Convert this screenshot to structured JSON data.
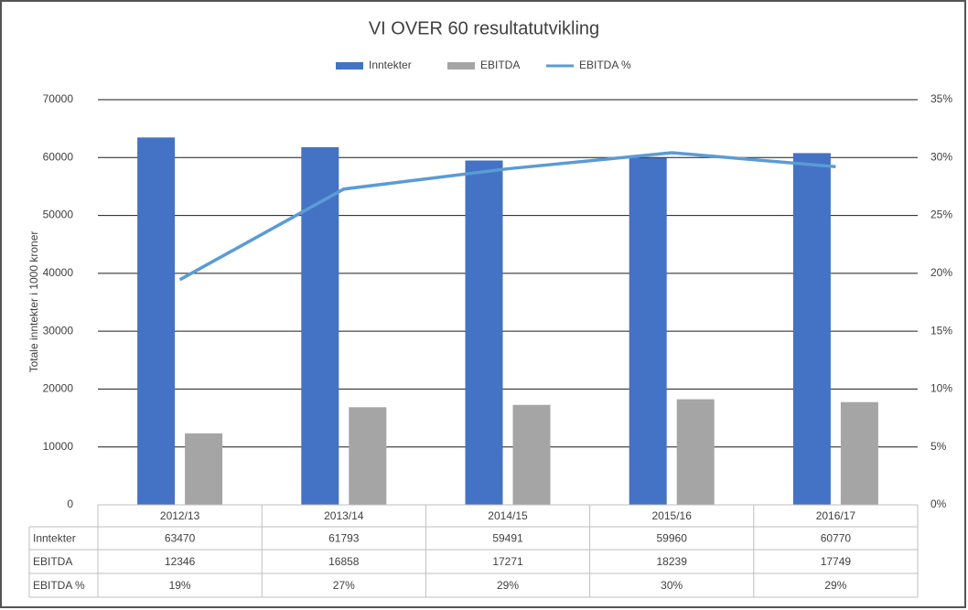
{
  "chart_data": {
    "type": "bar",
    "title": "VI OVER 60 resultatutvikling",
    "y_label": "Totale inntekter i 1000 kroner",
    "categories": [
      "2012/13",
      "2013/14",
      "2014/15",
      "2015/16",
      "2016/17"
    ],
    "series": [
      {
        "name": "Inntekter",
        "type": "bar",
        "color": "#4472c4",
        "values": [
          63470,
          61793,
          59491,
          59960,
          60770
        ]
      },
      {
        "name": "EBITDA",
        "type": "bar",
        "color": "#a5a5a5",
        "values": [
          12346,
          16858,
          17271,
          18239,
          17749
        ]
      },
      {
        "name": "EBITDA %",
        "type": "line",
        "axis": "y2",
        "color": "#5b9bd5",
        "values": [
          19.45,
          27.28,
          29.03,
          30.42,
          29.21
        ],
        "value_labels": [
          "19%",
          "27%",
          "29%",
          "30%",
          "29%"
        ]
      }
    ],
    "ylim": [
      0,
      70000
    ],
    "yticks": [
      0,
      10000,
      20000,
      30000,
      40000,
      50000,
      60000,
      70000
    ],
    "y2lim": [
      0,
      35
    ],
    "y2ticks": [
      {
        "value": 0,
        "label": "0%"
      },
      {
        "value": 5,
        "label": "5%"
      },
      {
        "value": 10,
        "label": "10%"
      },
      {
        "value": 15,
        "label": "15%"
      },
      {
        "value": 20,
        "label": "20%"
      },
      {
        "value": 25,
        "label": "25%"
      },
      {
        "value": 30,
        "label": "30%"
      },
      {
        "value": 35,
        "label": "35%"
      }
    ],
    "grid": true,
    "legend": "top"
  }
}
